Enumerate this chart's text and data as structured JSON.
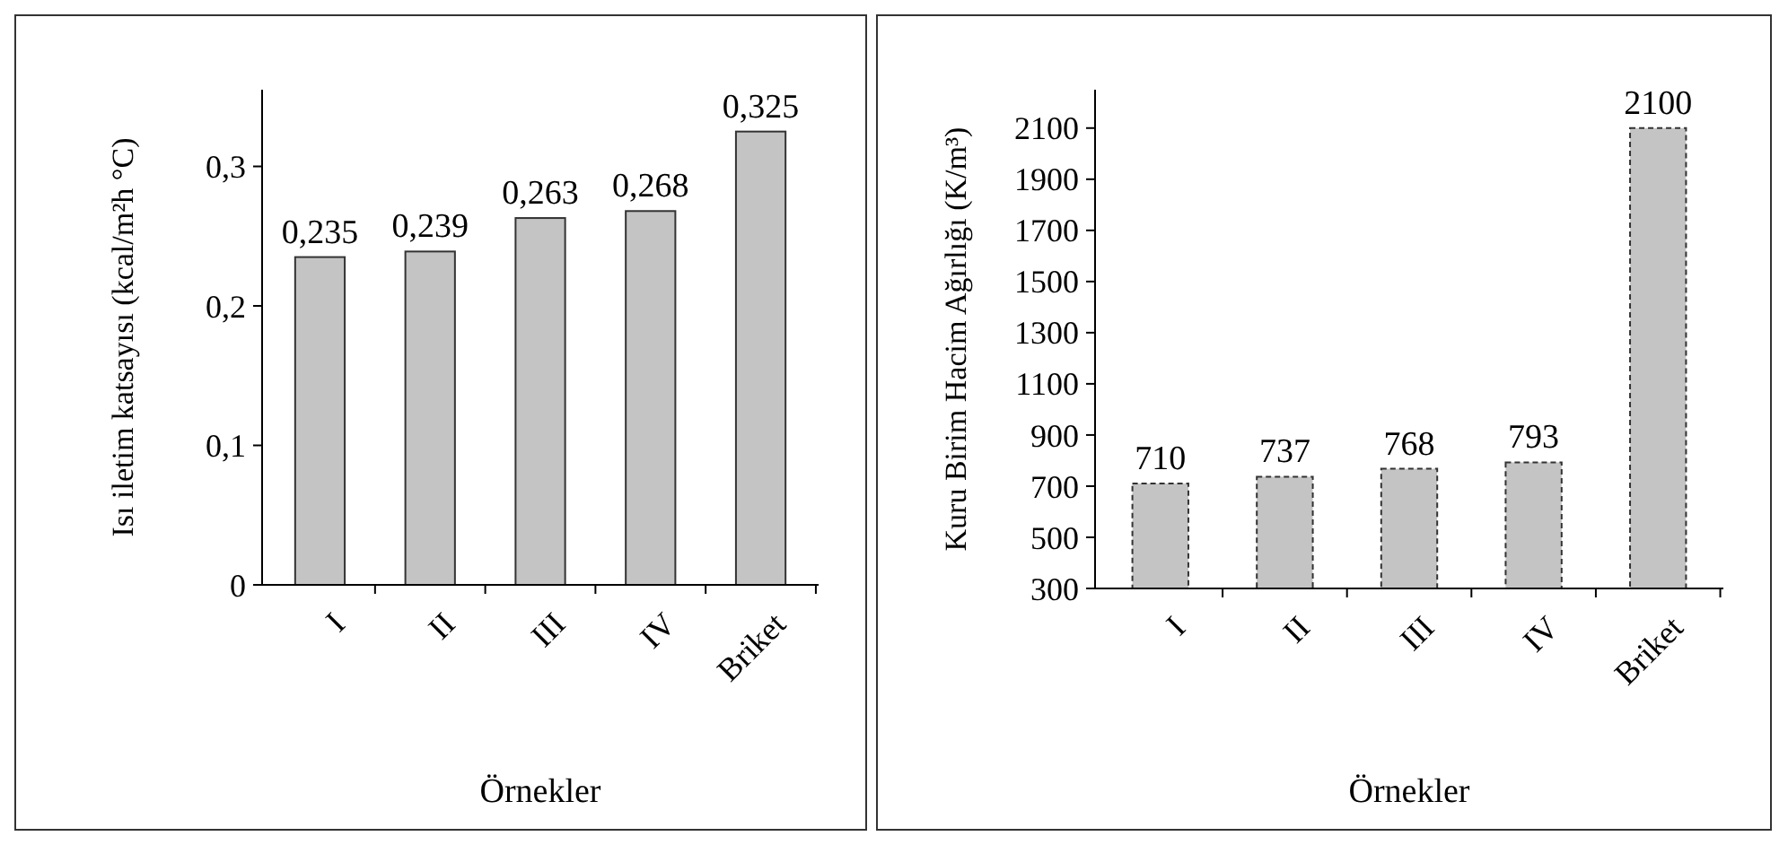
{
  "chart_data": [
    {
      "type": "bar",
      "xlabel": "Örnekler",
      "ylabel": "Isı iletim katsayısı (kcal/m²h °C)",
      "categories": [
        "I",
        "II",
        "III",
        "IV",
        "Briket"
      ],
      "values": [
        0.235,
        0.239,
        0.263,
        0.268,
        0.325
      ],
      "value_labels": [
        "0,235",
        "0,239",
        "0,263",
        "0,268",
        "0,325"
      ],
      "color": "#c4c4c4",
      "ylim": [
        0,
        0.355
      ],
      "yticks": [
        0,
        {
          "value": 0.1,
          "label": "0,1"
        },
        {
          "value": 0.2,
          "label": "0,2"
        },
        {
          "value": 0.3,
          "label": "0,3"
        }
      ],
      "grid": false
    },
    {
      "type": "bar",
      "xlabel": "Örnekler",
      "ylabel": "Kuru Birim Hacim Ağırlığı (K/m³)",
      "categories": [
        "I",
        "II",
        "III",
        "IV",
        "Briket"
      ],
      "values": [
        710,
        737,
        768,
        793,
        2100
      ],
      "data_labels": true,
      "color": "#c4c4c4",
      "ylim": [
        300,
        2250
      ],
      "yticks": [
        300,
        500,
        700,
        900,
        1100,
        1300,
        1500,
        1700,
        1900,
        2100
      ],
      "grid": false
    }
  ]
}
